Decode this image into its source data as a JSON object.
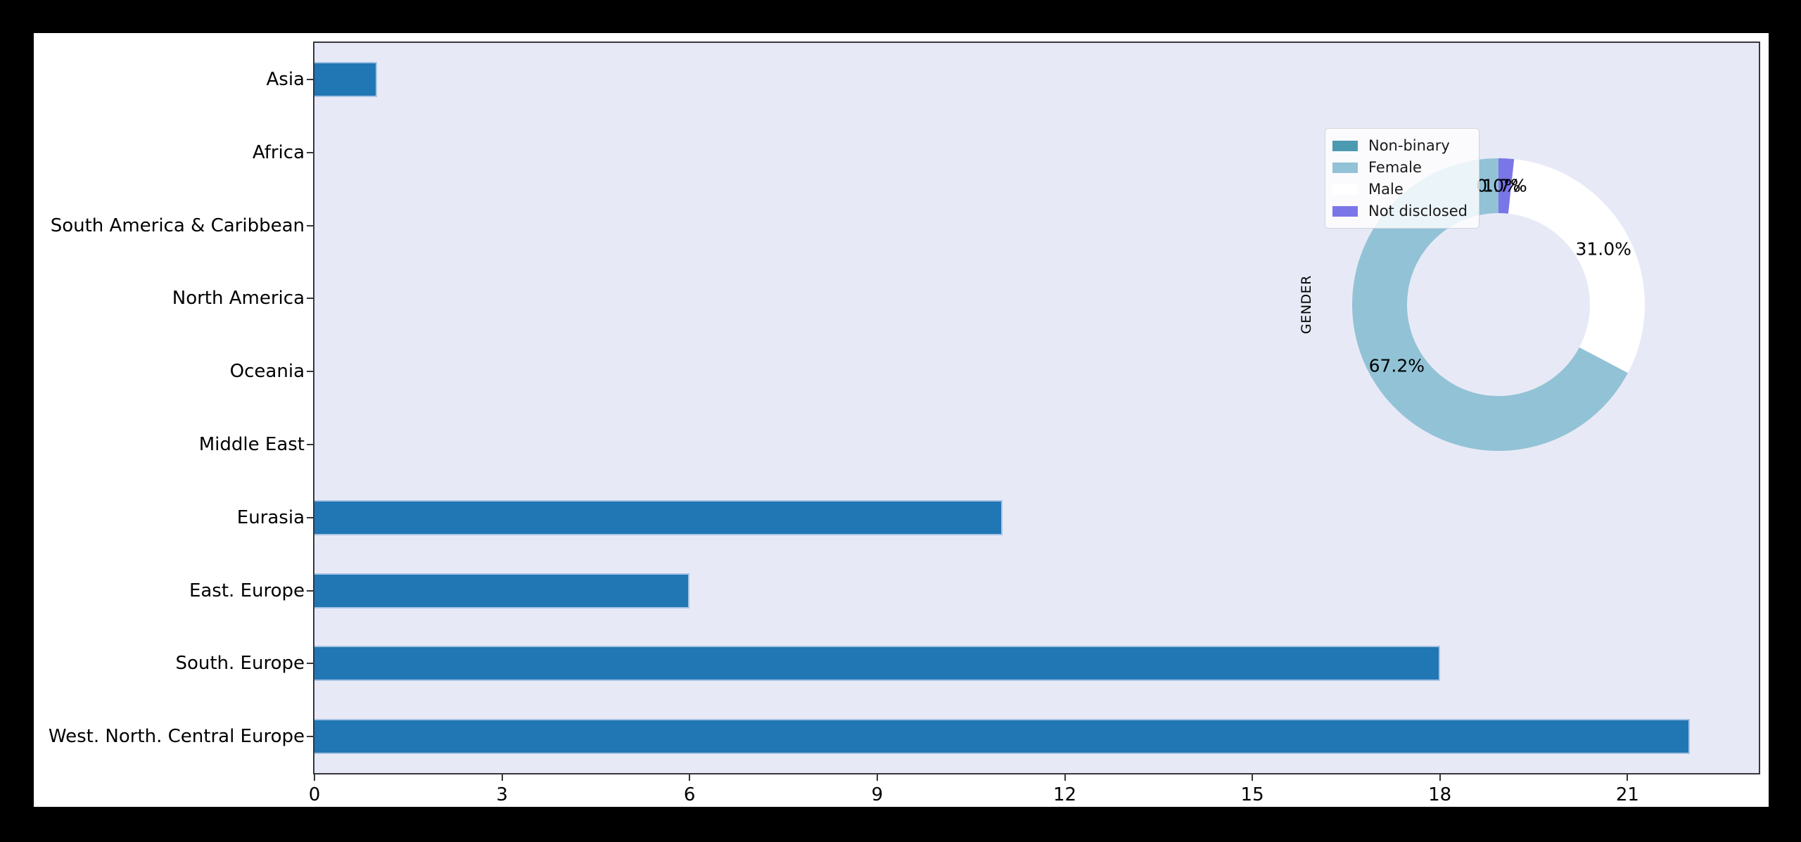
{
  "chart_data": [
    {
      "type": "bar",
      "orientation": "horizontal",
      "title": "",
      "xlabel": "",
      "ylabel": "",
      "categories": [
        "Asia",
        "Africa",
        "South America & Caribbean",
        "North America",
        "Oceania",
        "Middle East",
        "Eurasia",
        "East. Europe",
        "South. Europe",
        "West. North. Central Europe"
      ],
      "values": [
        1,
        0,
        0,
        0,
        0,
        0,
        11,
        6,
        18,
        22
      ],
      "xticks": [
        0,
        3,
        6,
        9,
        12,
        15,
        18,
        21
      ],
      "xlim": [
        0,
        23.1
      ],
      "grid": false,
      "bar_color": "#2176b4",
      "bar_edge_color": "#a6c3e3",
      "plot_bg_color": "#e7eaf6"
    },
    {
      "type": "pie",
      "donut": true,
      "ylabel": "GENDER",
      "start_angle": 90,
      "counterclock": true,
      "slices": [
        {
          "label": "Non-binary",
          "pct": 0.0,
          "pct_label": "0.0%",
          "color": "#4c9ab2"
        },
        {
          "label": "Female",
          "pct": 67.2,
          "pct_label": "67.2%",
          "color": "#92c2d6"
        },
        {
          "label": "Male",
          "pct": 31.0,
          "pct_label": "31.0%",
          "color": "#ffffff"
        },
        {
          "label": "Not disclosed",
          "pct": 1.7,
          "pct_label": "1.7%",
          "color": "#7b76e8"
        }
      ],
      "legend": {
        "position": "upper left",
        "entries": [
          "Non-binary",
          "Female",
          "Male",
          "Not disclosed"
        ]
      }
    }
  ]
}
